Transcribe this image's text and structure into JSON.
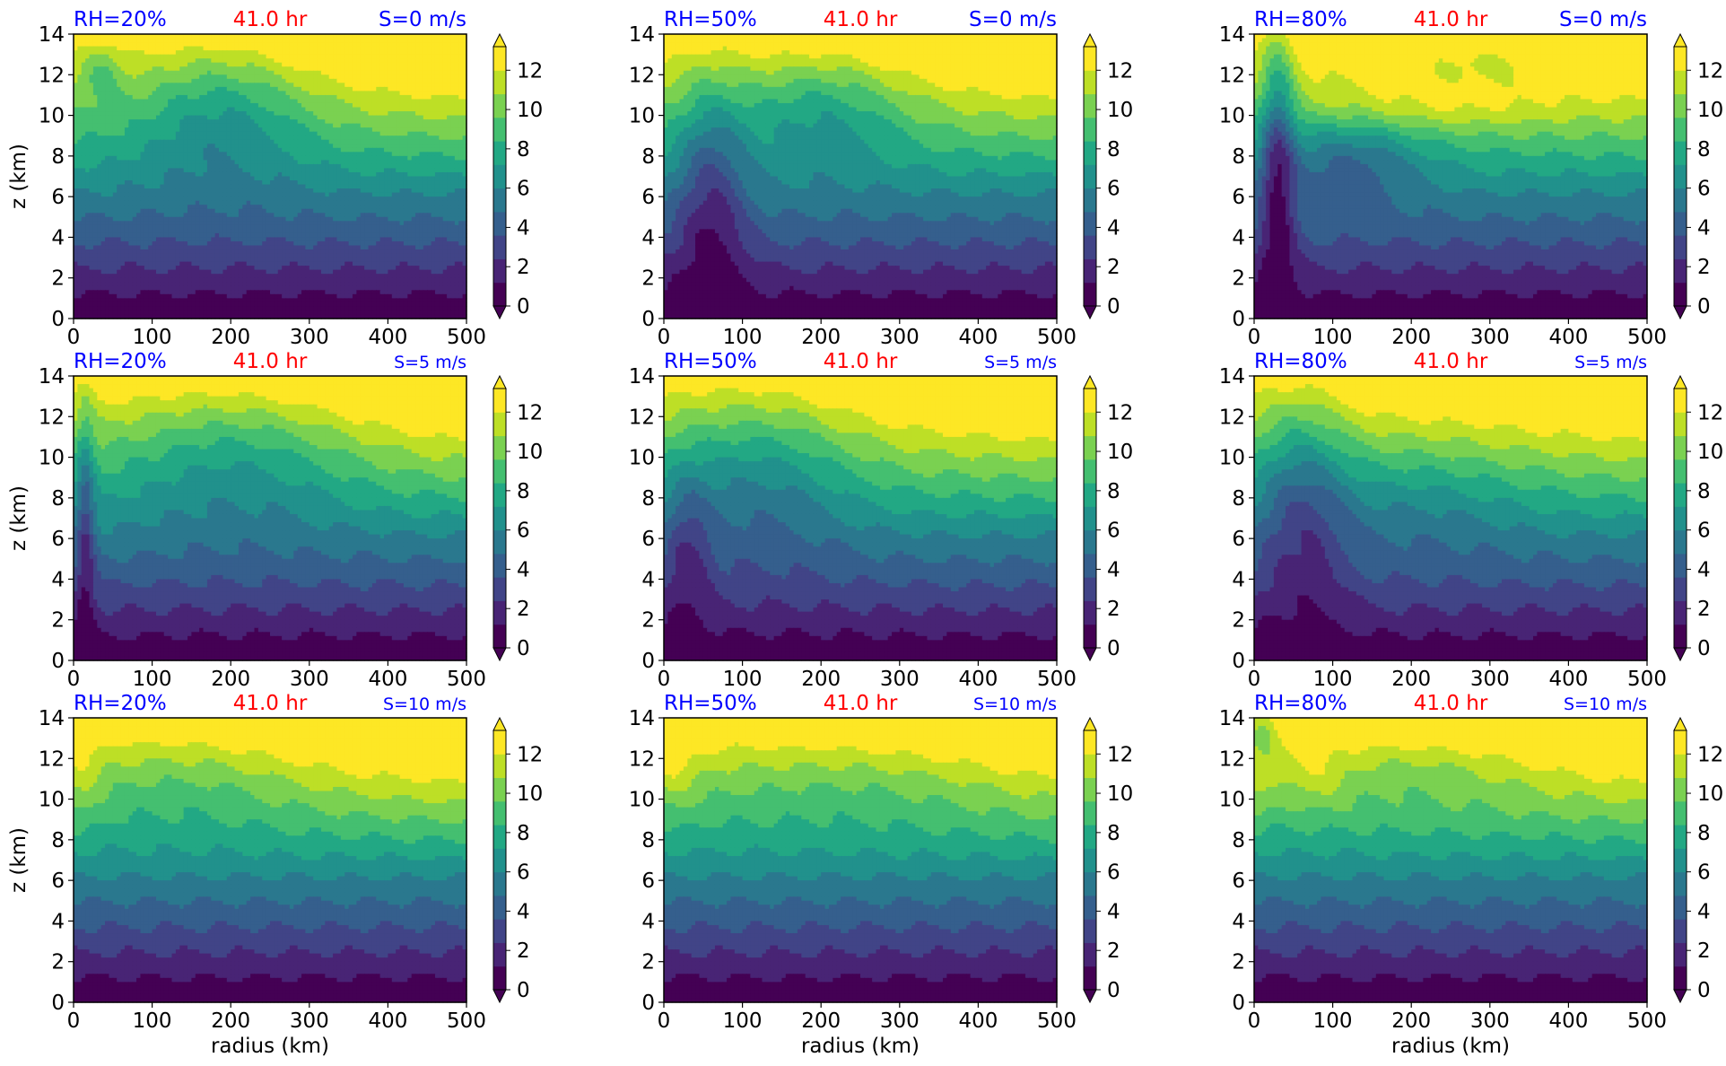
{
  "figure": {
    "colors": {
      "viridis_levels": [
        "#440154",
        "#482475",
        "#414487",
        "#355f8d",
        "#2a788e",
        "#21918c",
        "#22a884",
        "#44bf70",
        "#7ad151",
        "#bddf26",
        "#fde725"
      ],
      "rh_label": "#0000ff",
      "time_label": "#ff0000",
      "shear_label": "#0000ff"
    }
  },
  "chart_data": [
    {
      "type": "heatmap",
      "panel": "row1-col1",
      "rh": "RH=20%",
      "time": "41.0 hr",
      "shear": "S=0 m/s",
      "xlabel": "",
      "ylabel": "z (km)",
      "xlim": [
        0,
        500
      ],
      "ylim": [
        0,
        14
      ],
      "x_ticks": [
        "0",
        "100",
        "200",
        "300",
        "400",
        "500"
      ],
      "y_ticks": [
        "0",
        "2",
        "4",
        "6",
        "8",
        "10",
        "12",
        "14"
      ],
      "colorbar": {
        "ticks": [
          "0",
          "2",
          "4",
          "6",
          "8",
          "10",
          "12"
        ],
        "range": [
          0,
          13.2
        ],
        "extend": "both"
      }
    },
    {
      "type": "heatmap",
      "panel": "row1-col2",
      "rh": "RH=50%",
      "time": "41.0 hr",
      "shear": "S=0 m/s",
      "xlabel": "",
      "ylabel": "",
      "xlim": [
        0,
        500
      ],
      "ylim": [
        0,
        14
      ],
      "x_ticks": [
        "0",
        "100",
        "200",
        "300",
        "400",
        "500"
      ],
      "y_ticks": [
        "0",
        "2",
        "4",
        "6",
        "8",
        "10",
        "12",
        "14"
      ],
      "colorbar": {
        "ticks": [
          "0",
          "2",
          "4",
          "6",
          "8",
          "10",
          "12"
        ],
        "range": [
          0,
          13.2
        ],
        "extend": "both"
      }
    },
    {
      "type": "heatmap",
      "panel": "row1-col3",
      "rh": "RH=80%",
      "time": "41.0 hr",
      "shear": "S=0 m/s",
      "xlabel": "",
      "ylabel": "",
      "xlim": [
        0,
        500
      ],
      "ylim": [
        0,
        14
      ],
      "x_ticks": [
        "0",
        "100",
        "200",
        "300",
        "400",
        "500"
      ],
      "y_ticks": [
        "0",
        "2",
        "4",
        "6",
        "8",
        "10",
        "12",
        "14"
      ],
      "colorbar": {
        "ticks": [
          "0",
          "2",
          "4",
          "6",
          "8",
          "10",
          "12"
        ],
        "range": [
          0,
          13.2
        ],
        "extend": "both"
      }
    },
    {
      "type": "heatmap",
      "panel": "row2-col1",
      "rh": "RH=20%",
      "time": "41.0 hr",
      "shear": "S=5 m/s",
      "xlabel": "",
      "ylabel": "z (km)",
      "xlim": [
        0,
        500
      ],
      "ylim": [
        0,
        14
      ],
      "x_ticks": [
        "0",
        "100",
        "200",
        "300",
        "400",
        "500"
      ],
      "y_ticks": [
        "0",
        "2",
        "4",
        "6",
        "8",
        "10",
        "12",
        "14"
      ],
      "colorbar": {
        "ticks": [
          "0",
          "2",
          "4",
          "6",
          "8",
          "10",
          "12"
        ],
        "range": [
          0,
          13.2
        ],
        "extend": "both"
      }
    },
    {
      "type": "heatmap",
      "panel": "row2-col2",
      "rh": "RH=50%",
      "time": "41.0 hr",
      "shear": "S=5 m/s",
      "xlabel": "",
      "ylabel": "",
      "xlim": [
        0,
        500
      ],
      "ylim": [
        0,
        14
      ],
      "x_ticks": [
        "0",
        "100",
        "200",
        "300",
        "400",
        "500"
      ],
      "y_ticks": [
        "0",
        "2",
        "4",
        "6",
        "8",
        "10",
        "12",
        "14"
      ],
      "colorbar": {
        "ticks": [
          "0",
          "2",
          "4",
          "6",
          "8",
          "10",
          "12"
        ],
        "range": [
          0,
          13.2
        ],
        "extend": "both"
      }
    },
    {
      "type": "heatmap",
      "panel": "row2-col3",
      "rh": "RH=80%",
      "time": "41.0 hr",
      "shear": "S=5 m/s",
      "xlabel": "",
      "ylabel": "",
      "xlim": [
        0,
        500
      ],
      "ylim": [
        0,
        14
      ],
      "x_ticks": [
        "0",
        "100",
        "200",
        "300",
        "400",
        "500"
      ],
      "y_ticks": [
        "0",
        "2",
        "4",
        "6",
        "8",
        "10",
        "12",
        "14"
      ],
      "colorbar": {
        "ticks": [
          "0",
          "2",
          "4",
          "6",
          "8",
          "10",
          "12"
        ],
        "range": [
          0,
          13.2
        ],
        "extend": "both"
      }
    },
    {
      "type": "heatmap",
      "panel": "row3-col1",
      "rh": "RH=20%",
      "time": "41.0 hr",
      "shear": "S=10 m/s",
      "xlabel": "radius (km)",
      "ylabel": "z (km)",
      "xlim": [
        0,
        500
      ],
      "ylim": [
        0,
        14
      ],
      "x_ticks": [
        "0",
        "100",
        "200",
        "300",
        "400",
        "500"
      ],
      "y_ticks": [
        "0",
        "2",
        "4",
        "6",
        "8",
        "10",
        "12",
        "14"
      ],
      "colorbar": {
        "ticks": [
          "0",
          "2",
          "4",
          "6",
          "8",
          "10",
          "12"
        ],
        "range": [
          0,
          13.2
        ],
        "extend": "both"
      }
    },
    {
      "type": "heatmap",
      "panel": "row3-col2",
      "rh": "RH=50%",
      "time": "41.0 hr",
      "shear": "S=10 m/s",
      "xlabel": "radius (km)",
      "ylabel": "",
      "xlim": [
        0,
        500
      ],
      "ylim": [
        0,
        14
      ],
      "x_ticks": [
        "0",
        "100",
        "200",
        "300",
        "400",
        "500"
      ],
      "y_ticks": [
        "0",
        "2",
        "4",
        "6",
        "8",
        "10",
        "12",
        "14"
      ],
      "colorbar": {
        "ticks": [
          "0",
          "2",
          "4",
          "6",
          "8",
          "10",
          "12"
        ],
        "range": [
          0,
          13.2
        ],
        "extend": "both"
      }
    },
    {
      "type": "heatmap",
      "panel": "row3-col3",
      "rh": "RH=80%",
      "time": "41.0 hr",
      "shear": "S=10 m/s",
      "xlabel": "radius (km)",
      "ylabel": "",
      "xlim": [
        0,
        500
      ],
      "ylim": [
        0,
        14
      ],
      "x_ticks": [
        "0",
        "100",
        "200",
        "300",
        "400",
        "500"
      ],
      "y_ticks": [
        "0",
        "2",
        "4",
        "6",
        "8",
        "10",
        "12",
        "14"
      ],
      "colorbar": {
        "ticks": [
          "0",
          "2",
          "4",
          "6",
          "8",
          "10",
          "12"
        ],
        "range": [
          0,
          13.2
        ],
        "extend": "both"
      }
    }
  ]
}
